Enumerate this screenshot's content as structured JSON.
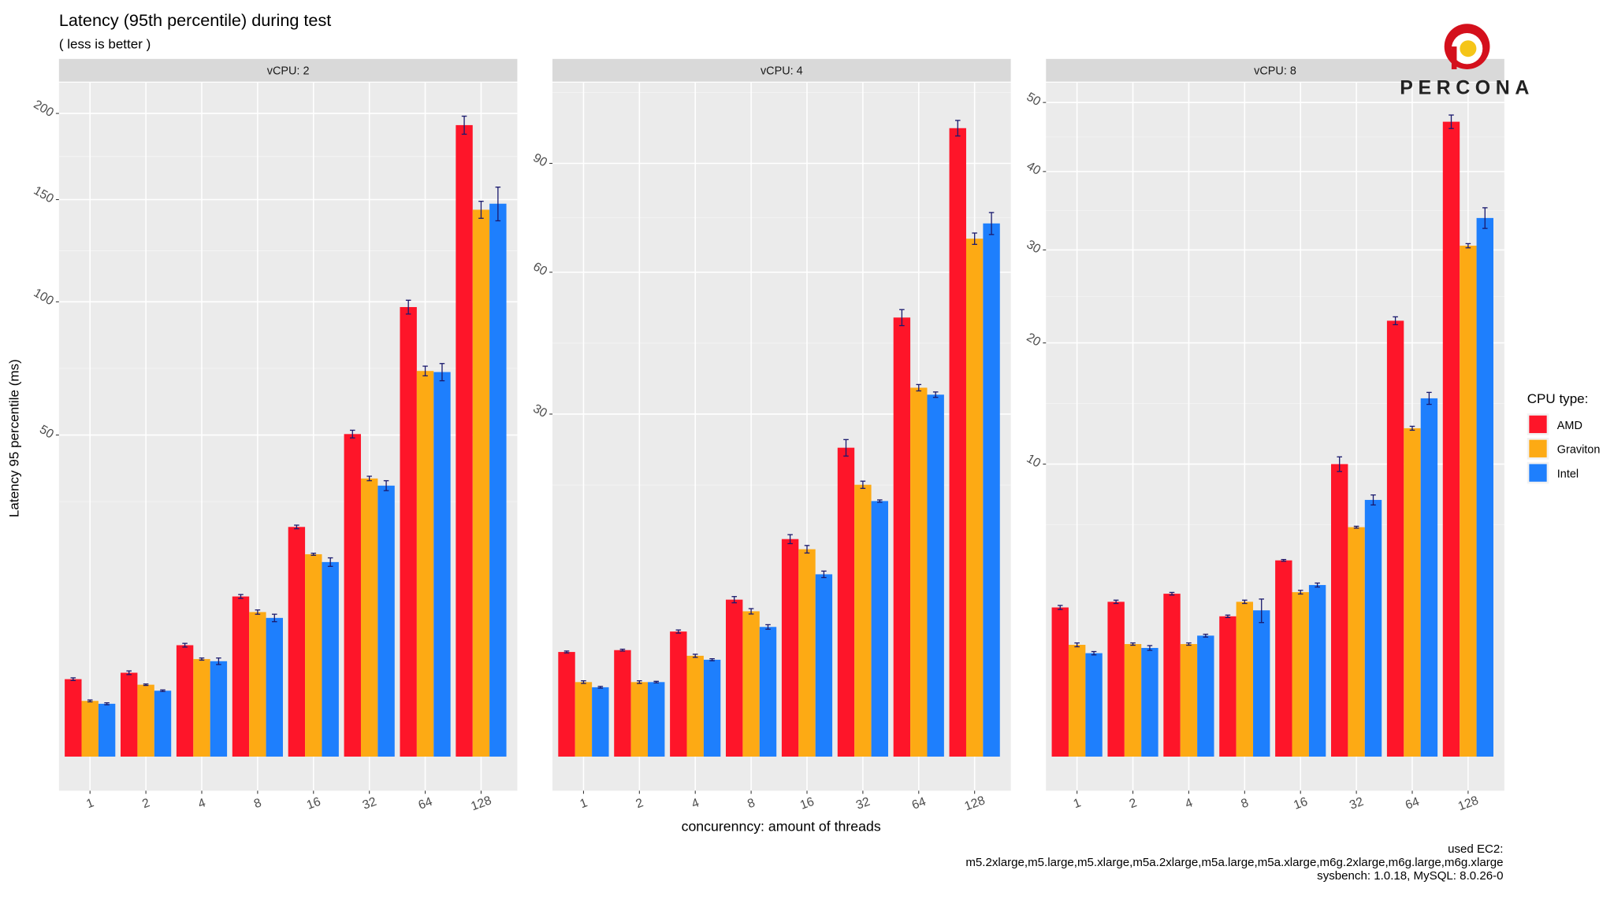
{
  "chart_data": {
    "type": "bar",
    "title": "Latency (95th percentile) during test",
    "subtitle": "( less is better )",
    "xlabel": "concurenncy: amount of threads",
    "ylabel": "Latency 95 percentile (ms)",
    "y_scale": "sqrt",
    "grid": true,
    "legend": {
      "title": "CPU type:",
      "placement": "right",
      "entries": [
        "AMD",
        "Graviton",
        "Intel"
      ]
    },
    "colors": {
      "AMD": "#fe1529",
      "Graviton": "#fdaa14",
      "Intel": "#1e7ffd",
      "error_bar": "#1a1a6e",
      "panel_bg": "#ebebeb",
      "strip_bg": "#d9d9d9"
    },
    "categories": [
      "1",
      "2",
      "4",
      "8",
      "16",
      "32",
      "64",
      "128"
    ],
    "panels": [
      {
        "strip": "vCPU: 2",
        "yticks": [
          50,
          100,
          150,
          200
        ],
        "ylim": [
          0,
          245
        ],
        "series": [
          {
            "name": "AMD",
            "values": [
              2.9,
              3.4,
              6.0,
              12.4,
              25.5,
              50.3,
              97.7,
              192.8
            ],
            "err": [
              0.1,
              0.15,
              0.2,
              0.3,
              0.4,
              1.2,
              3.0,
              5.5
            ]
          },
          {
            "name": "Graviton",
            "values": [
              1.5,
              2.5,
              4.6,
              10.1,
              19.8,
              37.4,
              71.9,
              144.6
            ],
            "err": [
              0.05,
              0.05,
              0.1,
              0.3,
              0.2,
              0.6,
              1.8,
              4.5
            ]
          },
          {
            "name": "Intel",
            "values": [
              1.35,
              2.1,
              4.4,
              9.3,
              18.3,
              35.5,
              71.5,
              147.8
            ],
            "err": [
              0.05,
              0.05,
              0.3,
              0.5,
              0.8,
              1.3,
              3.2,
              9.0
            ]
          }
        ]
      },
      {
        "strip": "vCPU: 4",
        "yticks": [
          30,
          60,
          90
        ],
        "ylim": [
          0,
          115
        ],
        "series": [
          {
            "name": "AMD",
            "values": [
              2.8,
              2.9,
              4.0,
              6.3,
              12.1,
              24.4,
              49.3,
              101.0
            ],
            "err": [
              0.05,
              0.05,
              0.1,
              0.25,
              0.5,
              1.3,
              1.8,
              2.5
            ]
          },
          {
            "name": "Graviton",
            "values": [
              1.42,
              1.42,
              2.6,
              5.4,
              11.0,
              18.9,
              34.8,
              68.6
            ],
            "err": [
              0.05,
              0.05,
              0.08,
              0.2,
              0.4,
              0.5,
              0.6,
              1.5
            ]
          },
          {
            "name": "Intel",
            "values": [
              1.23,
              1.42,
              2.4,
              4.3,
              8.5,
              16.7,
              33.5,
              72.7
            ],
            "err": [
              0.03,
              0.03,
              0.05,
              0.15,
              0.3,
              0.15,
              0.5,
              3.0
            ]
          }
        ]
      },
      {
        "strip": "vCPU: 8",
        "yticks": [
          10,
          20,
          30,
          40,
          50
        ],
        "ylim": [
          0,
          57
        ],
        "series": [
          {
            "name": "AMD",
            "values": [
              2.6,
              2.8,
              3.1,
              2.3,
              4.5,
              10.0,
              22.2,
              47.1
            ],
            "err": [
              0.07,
              0.06,
              0.05,
              0.04,
              0.04,
              0.5,
              0.4,
              1.0
            ]
          },
          {
            "name": "Graviton",
            "values": [
              1.46,
              1.48,
              1.48,
              2.8,
              3.16,
              6.15,
              12.6,
              30.5
            ],
            "err": [
              0.05,
              0.03,
              0.03,
              0.06,
              0.07,
              0.05,
              0.15,
              0.25
            ]
          },
          {
            "name": "Intel",
            "values": [
              1.25,
              1.38,
              1.71,
              2.5,
              3.44,
              7.7,
              15.0,
              33.9
            ],
            "err": [
              0.04,
              0.06,
              0.04,
              0.4,
              0.08,
              0.3,
              0.5,
              1.3
            ]
          }
        ]
      }
    ]
  },
  "logo": {
    "text": "PERCONA"
  },
  "footnote": {
    "line1": "used EC2:",
    "line2": "m5.2xlarge,m5.large,m5.xlarge,m5a.2xlarge,m5a.large,m5a.xlarge,m6g.2xlarge,m6g.large,m6g.xlarge",
    "line3": "sysbench: 1.0.18, MySQL: 8.0.26-0"
  }
}
